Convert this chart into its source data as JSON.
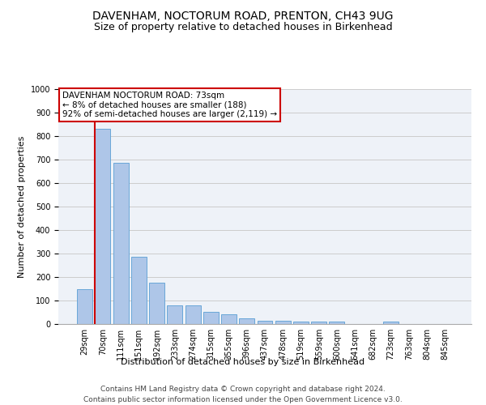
{
  "title": "DAVENHAM, NOCTORUM ROAD, PRENTON, CH43 9UG",
  "subtitle": "Size of property relative to detached houses in Birkenhead",
  "xlabel": "Distribution of detached houses by size in Birkenhead",
  "ylabel": "Number of detached properties",
  "categories": [
    "29sqm",
    "70sqm",
    "111sqm",
    "151sqm",
    "192sqm",
    "233sqm",
    "274sqm",
    "315sqm",
    "355sqm",
    "396sqm",
    "437sqm",
    "478sqm",
    "519sqm",
    "559sqm",
    "600sqm",
    "641sqm",
    "682sqm",
    "723sqm",
    "763sqm",
    "804sqm",
    "845sqm"
  ],
  "values": [
    150,
    830,
    685,
    285,
    175,
    80,
    80,
    53,
    42,
    23,
    13,
    13,
    11,
    11,
    11,
    0,
    0,
    10,
    0,
    0,
    0
  ],
  "bar_color": "#aec6e8",
  "bar_edge_color": "#5a9fd4",
  "vline_x": 1,
  "vline_color": "#cc0000",
  "annotation_text": "DAVENHAM NOCTORUM ROAD: 73sqm\n← 8% of detached houses are smaller (188)\n92% of semi-detached houses are larger (2,119) →",
  "annotation_box_color": "#ffffff",
  "annotation_box_edge_color": "#cc0000",
  "ylim": [
    0,
    1000
  ],
  "yticks": [
    0,
    100,
    200,
    300,
    400,
    500,
    600,
    700,
    800,
    900,
    1000
  ],
  "grid_color": "#cccccc",
  "bg_color": "#eef2f8",
  "footer1": "Contains HM Land Registry data © Crown copyright and database right 2024.",
  "footer2": "Contains public sector information licensed under the Open Government Licence v3.0.",
  "title_fontsize": 10,
  "subtitle_fontsize": 9,
  "axis_label_fontsize": 8,
  "tick_fontsize": 7,
  "annotation_fontsize": 7.5,
  "footer_fontsize": 6.5
}
